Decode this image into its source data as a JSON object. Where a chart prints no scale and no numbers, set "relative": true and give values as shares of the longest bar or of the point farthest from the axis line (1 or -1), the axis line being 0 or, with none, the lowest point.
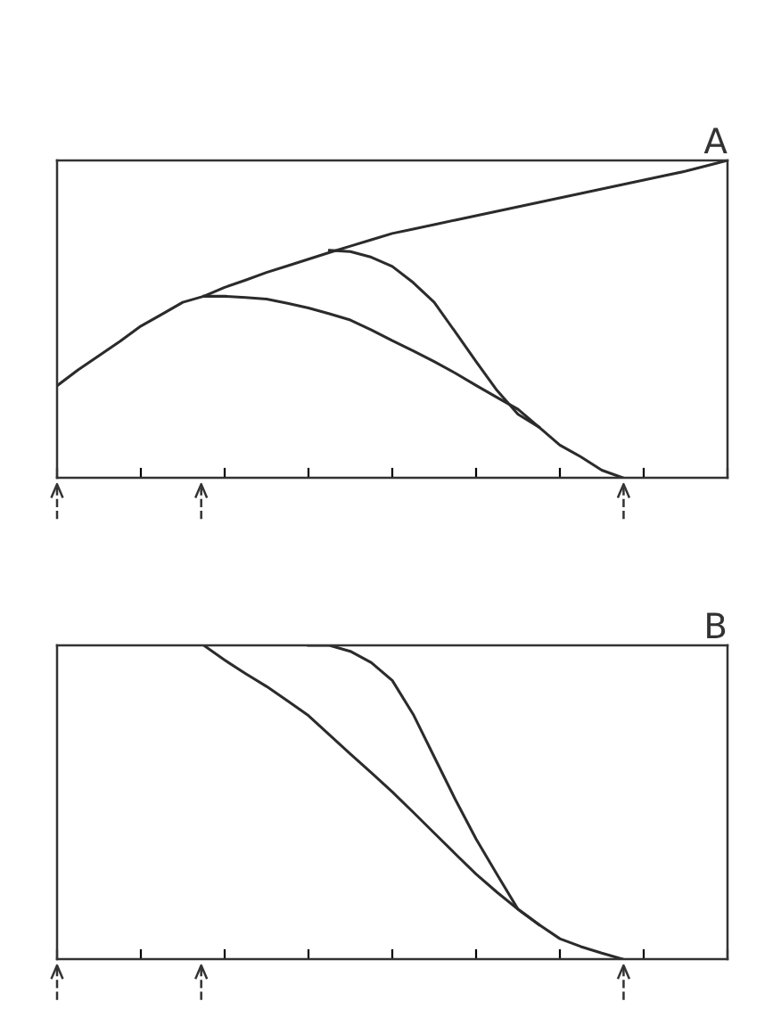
{
  "chart_data": [
    {
      "type": "line",
      "title": "A",
      "relative": true,
      "categories": [
        null,
        null,
        null,
        null,
        null,
        null,
        null,
        null,
        null,
        null,
        null,
        null,
        null,
        null,
        null,
        null,
        null,
        null,
        null,
        null,
        null,
        null,
        null,
        null,
        null,
        null,
        null,
        null,
        null,
        null,
        null,
        null,
        null
      ],
      "series": [
        {
          "color": "#2b2b2b",
          "values": [
            0.29,
            0.34,
            0.385,
            0.43,
            0.478,
            0.515,
            0.553,
            0.572,
            0.6,
            0.623,
            0.647,
            0.668,
            0.689,
            0.71,
            0.73,
            0.75,
            0.77,
            0.784,
            0.798,
            0.812,
            0.826,
            0.84,
            0.854,
            0.868,
            0.882,
            0.896,
            0.91,
            0.924,
            0.938,
            0.952,
            0.966,
            0.983,
            1.0
          ]
        },
        {
          "color": "#2b2b2b",
          "values": [
            null,
            null,
            null,
            null,
            null,
            null,
            null,
            0.572,
            0.572,
            0.568,
            0.563,
            0.55,
            0.535,
            0.517,
            0.497,
            0.466,
            0.432,
            0.4,
            0.366,
            0.33,
            0.291,
            0.253,
            0.216,
            0.16,
            0.103,
            0.066,
            0.024,
            0.0,
            null,
            null,
            null,
            null,
            null
          ]
        },
        {
          "color": "#2b2b2b",
          "values": [
            null,
            null,
            null,
            null,
            null,
            null,
            null,
            null,
            null,
            null,
            null,
            null,
            null,
            0.717,
            0.713,
            0.695,
            0.666,
            0.615,
            0.553,
            0.46,
            0.366,
            0.275,
            0.2,
            0.16,
            null,
            null,
            null,
            null,
            null,
            null,
            null,
            null,
            null
          ]
        }
      ],
      "grid": false,
      "marker": "none",
      "line_style": "solid"
    },
    {
      "type": "line",
      "title": "B",
      "relative": true,
      "categories": [
        null,
        null,
        null,
        null,
        null,
        null,
        null,
        null,
        null,
        null,
        null,
        null,
        null,
        null,
        null,
        null,
        null,
        null,
        null,
        null,
        null,
        null,
        null,
        null,
        null,
        null,
        null,
        null,
        null,
        null,
        null,
        null,
        null
      ],
      "series": [
        {
          "color": "#2b2b2b",
          "values": [
            null,
            null,
            null,
            null,
            null,
            null,
            null,
            1.0,
            0.953,
            0.91,
            0.869,
            0.823,
            0.776,
            0.715,
            0.654,
            0.594,
            0.533,
            0.468,
            0.402,
            0.336,
            0.271,
            0.213,
            0.159,
            0.11,
            0.065,
            0.04,
            0.019,
            0.0,
            null,
            null,
            null,
            null,
            null
          ]
        },
        {
          "color": "#2b2b2b",
          "values": [
            null,
            null,
            null,
            null,
            null,
            null,
            null,
            null,
            null,
            null,
            null,
            null,
            1.0,
            1.0,
            0.981,
            0.945,
            0.888,
            0.78,
            0.645,
            0.51,
            0.383,
            0.27,
            0.159,
            0.11,
            null,
            null,
            null,
            null,
            null,
            null,
            null,
            null,
            null
          ]
        }
      ],
      "grid": false,
      "marker": "none",
      "line_style": "solid"
    }
  ]
}
